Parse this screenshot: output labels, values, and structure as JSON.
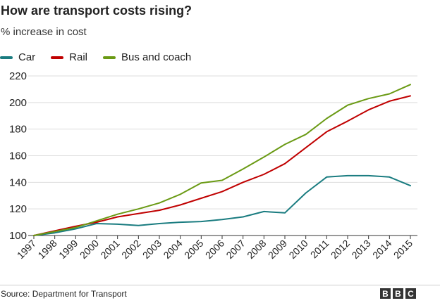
{
  "chart_data": {
    "type": "line",
    "title": "How are transport costs rising?",
    "subtitle": "% increase in cost",
    "x": [
      "1997",
      "1998",
      "1999",
      "2000",
      "2001",
      "2002",
      "2003",
      "2004",
      "2005",
      "2006",
      "2007",
      "2008",
      "2009",
      "2010",
      "2011",
      "2012",
      "2013",
      "2014",
      "2015"
    ],
    "series": [
      {
        "name": "Car",
        "color": "#1a7c80",
        "values": [
          100,
          102,
          105,
          109,
          108.5,
          107.5,
          109,
          110,
          110.5,
          112,
          114,
          118,
          117,
          132,
          144,
          145,
          145,
          144,
          137.5
        ]
      },
      {
        "name": "Rail",
        "color": "#c00000",
        "values": [
          100,
          103.5,
          107,
          110,
          114,
          116.5,
          119,
          123,
          128,
          133,
          140,
          146,
          154,
          166,
          178,
          186,
          194.5,
          201,
          205
        ]
      },
      {
        "name": "Bus and coach",
        "color": "#6a9a14",
        "values": [
          100,
          103,
          106,
          111,
          116,
          120,
          124.5,
          131,
          139.5,
          141.5,
          150,
          159,
          168.5,
          176,
          188,
          198,
          203,
          206.5,
          213.5
        ]
      }
    ],
    "yticks": [
      100,
      120,
      140,
      160,
      180,
      200,
      220
    ],
    "ylim": [
      100,
      220
    ],
    "grid": true,
    "legend_position": "top-left"
  },
  "footer": {
    "source": "Source: Department for Transport",
    "logo_letters": [
      "B",
      "B",
      "C"
    ]
  }
}
